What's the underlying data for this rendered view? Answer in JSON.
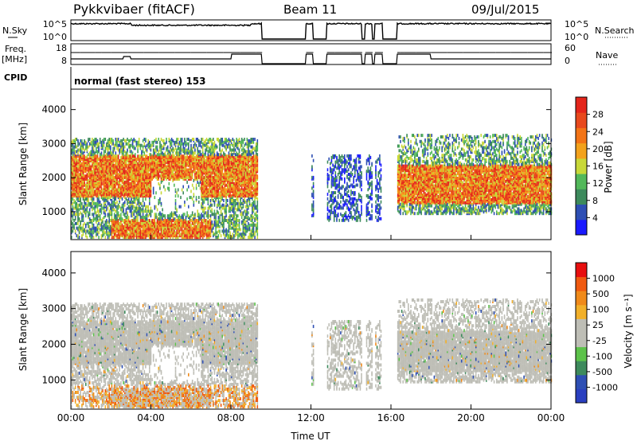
{
  "header": {
    "station_title": "Pykkvibaer (fitACF)",
    "beam_label": "Beam 11",
    "date_label": "09/Jul/2015"
  },
  "mini_panels": {
    "nsky_label": "N.Sky",
    "nsearch_label": "N.Search",
    "freq_label_line1": "Freq.",
    "freq_label_line2": "[MHz]",
    "nave_label": "Nave",
    "cpid_label": "CPID",
    "cpid_text": "normal (fast stereo) 153",
    "nsky_ticks": [
      "10^5",
      "10^0"
    ],
    "nsearch_ticks": [
      "10^5",
      "10^0"
    ],
    "freq_ticks": [
      "18",
      "8"
    ],
    "nave_ticks": [
      "60",
      "0"
    ]
  },
  "colors": {
    "power_scale": [
      "#1a1aff",
      "#2e4fb4",
      "#3d8a5c",
      "#52b85a",
      "#c8d838",
      "#f3a21c",
      "#f37416",
      "#e8491d",
      "#e4251b"
    ],
    "velocity_scale": [
      "#e80f0f",
      "#f05a10",
      "#f08a1a",
      "#f2b02a",
      "#bebeb6",
      "#bebeb6",
      "#5cc24a",
      "#3d8a5c",
      "#2e4fb4",
      "#2a3fc0"
    ]
  },
  "chart_data": [
    {
      "type": "heatmap",
      "title": "",
      "parameter": "Power",
      "ylabel": "Slant Range [km]",
      "xlabel": "",
      "ylim": [
        180,
        4600
      ],
      "xlim": [
        0,
        24
      ],
      "y_ticks": [
        "1000",
        "2000",
        "3000",
        "4000"
      ],
      "colorbar": {
        "label": "Power [dB]",
        "ticks": [
          "4",
          "8",
          "12",
          "16",
          "20",
          "24",
          "28"
        ],
        "range": [
          0,
          32
        ]
      },
      "data_gaps_hours": [
        [
          9.55,
          11.75
        ],
        [
          12.1,
          12.8
        ],
        [
          14.55,
          14.7
        ],
        [
          15.05,
          15.2
        ],
        [
          15.6,
          16.3
        ]
      ],
      "scatter_regions": [
        {
          "start_h": 0.0,
          "end_h": 9.3,
          "range_km": [
            200,
            3100
          ],
          "typical_power_db": 18
        },
        {
          "start_h": 12.0,
          "end_h": 15.5,
          "range_km": [
            700,
            2600
          ],
          "typical_power_db": 6
        },
        {
          "start_h": 16.3,
          "end_h": 24.0,
          "range_km": [
            900,
            3200
          ],
          "typical_power_db": 20
        }
      ]
    },
    {
      "type": "heatmap",
      "title": "",
      "parameter": "Velocity",
      "ylabel": "Slant Range [km]",
      "xlabel": "Time UT",
      "ylim": [
        180,
        4600
      ],
      "xlim": [
        0,
        24
      ],
      "y_ticks": [
        "1000",
        "2000",
        "3000",
        "4000"
      ],
      "x_ticks": [
        "00:00",
        "04:00",
        "08:00",
        "12:00",
        "16:00",
        "20:00",
        "00:00"
      ],
      "colorbar": {
        "label": "Velocity [m s⁻¹]",
        "ticks": [
          "1000",
          "500",
          "100",
          "25",
          "-25",
          "-100",
          "-500",
          "-1000"
        ]
      },
      "data_gaps_hours": [
        [
          9.55,
          11.75
        ],
        [
          12.1,
          12.8
        ],
        [
          14.55,
          14.7
        ],
        [
          15.05,
          15.2
        ],
        [
          15.6,
          16.3
        ]
      ],
      "scatter_regions": [
        {
          "start_h": 0.0,
          "end_h": 9.3,
          "range_km": [
            200,
            3100
          ],
          "typical_velocity_ms": 0
        },
        {
          "start_h": 12.0,
          "end_h": 15.5,
          "range_km": [
            700,
            2600
          ],
          "typical_velocity_ms": 0
        },
        {
          "start_h": 16.3,
          "end_h": 24.0,
          "range_km": [
            900,
            3200
          ],
          "typical_velocity_ms": -50
        }
      ]
    }
  ]
}
